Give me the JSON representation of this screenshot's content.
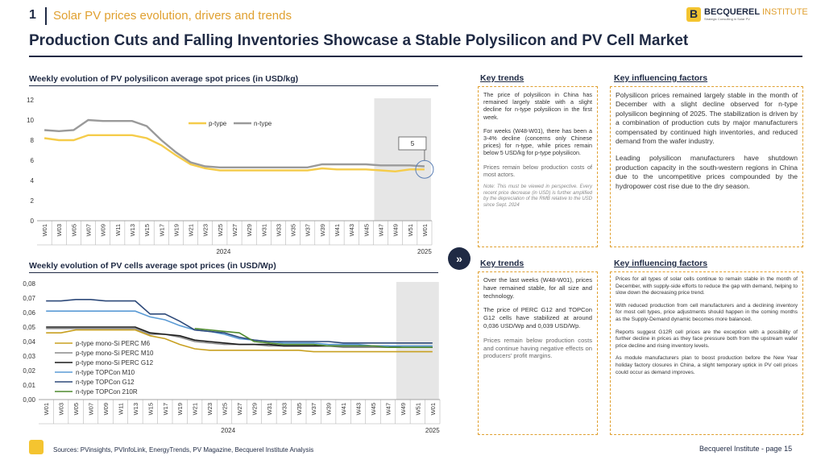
{
  "header": {
    "number": "1",
    "subtitle": "Solar PV prices evolution, drivers and trends",
    "logo_name": "BECQUEREL",
    "logo_name2": "INSTITUTE",
    "logo_tagline": "Strategic Consulting in Solar PV"
  },
  "title": "Production Cuts and Falling Inventories Showcase a Stable Polysilicon and PV Cell Market",
  "chart1_heading": "Weekly evolution of PV polysilicon average spot prices (in USD/kg)",
  "chart2_heading": "Weekly evolution of PV cells average spot prices (in USD/Wp)",
  "panel1": {
    "trends_title": "Key trends",
    "factors_title": "Key influencing factors",
    "trends": [
      "The price of polysilicon in China has remained largely stable with a slight decline for n-type polysilicon in the first week.",
      "For weeks (W48-W01), there has been a 3-4% decline (concerns only Chinese prices) for n-type, while prices remain below 5 USD/kg for p-type polysilicon.",
      "Prices remain below production costs of most actors."
    ],
    "note": "Note: This must be viewed in perspective. Every recent price decrease (in USD) is further amplified by the depreciation of the RMB relative to the USD since Sept. 2024",
    "factors": [
      "Polysilicon prices remained largely stable in the month of December with a slight decline observed for n-type polysilicon beginning of 2025. The stabilization is driven by a combination of production cuts by major manufacturers compensated by continued high inventories, and reduced demand from the wafer industry.",
      "Leading polysilicon manufacturers have shutdown production capacity in the south-western regions in China due to the uncompetitive prices compounded by the hydropower cost rise due to the dry season."
    ]
  },
  "panel2": {
    "trends_title": "Key trends",
    "factors_title": "Key influencing factors",
    "trends": [
      "Over the last weeks (W48-W01), prices have remained stable, for all size and technology.",
      "The price of PERC G12 and TOPCon G12 cells have stabilized at around 0,036 USD/Wp and 0,039 USD/Wp.",
      "Prices remain below production costs and continue having negative effects on producers' profit margins."
    ],
    "factors": [
      "Prices for all types of solar cells continue to remain stable in the month of December, with supply-side efforts to reduce the gap with demand, helping to slow down the decreasing price trend.",
      "With reduced production from cell manufacturers and a declining inventory for most cell types, price adjustments should happen in the coming months as the Supply-Demand dynamic becomes more balanced.",
      "Reports suggest G12R cell prices are the exception with a possibility of further decline in prices as they face pressure both from the upstream wafer price decline and rising inventory levels.",
      "As module manufacturers plan to boost production before the New Year holiday factory closures in China, a slight temporary uptick in PV cell prices could occur as demand improves."
    ]
  },
  "footer": {
    "sources": "Sources: PVinsights, PVInfoLink, EnergyTrends, PV Magazine, Becquerel Institute Analysis",
    "page": "Becquerel Institute - page 15"
  },
  "colors": {
    "navy": "#1f2a44",
    "gold": "#e0a030",
    "ptype": "#f5cc4a",
    "ntype": "#9a9a9a"
  },
  "chart_data": [
    {
      "type": "line",
      "title": "Weekly evolution of PV polysilicon average spot prices (in USD/kg)",
      "categories": [
        "W01",
        "W03",
        "W05",
        "W07",
        "W09",
        "W11",
        "W13",
        "W15",
        "W17",
        "W19",
        "W21",
        "W23",
        "W25",
        "W27",
        "W29",
        "W31",
        "W33",
        "W35",
        "W37",
        "W39",
        "W41",
        "W43",
        "W45",
        "W47",
        "W49",
        "W51",
        "W01"
      ],
      "xlabel_years": [
        "2024",
        "2025"
      ],
      "ylim": [
        0,
        12
      ],
      "yticks": [
        "0",
        "2",
        "4",
        "6",
        "8",
        "10",
        "12"
      ],
      "annotation": "5",
      "highlight_weeks": [
        "W47",
        "W01"
      ],
      "series": [
        {
          "name": "p-type",
          "color": "#f5cc4a",
          "values": [
            8.2,
            8.0,
            8.0,
            8.5,
            8.5,
            8.5,
            8.5,
            8.2,
            7.5,
            6.5,
            5.6,
            5.2,
            5.0,
            5.0,
            5.0,
            5.0,
            5.0,
            5.0,
            5.0,
            5.2,
            5.1,
            5.1,
            5.1,
            5.0,
            4.9,
            5.1,
            5.1
          ]
        },
        {
          "name": "n-type",
          "color": "#9a9a9a",
          "values": [
            9.0,
            8.9,
            9.0,
            10.0,
            9.9,
            9.9,
            9.9,
            9.4,
            8.0,
            6.8,
            5.8,
            5.4,
            5.3,
            5.3,
            5.3,
            5.3,
            5.3,
            5.3,
            5.3,
            5.6,
            5.6,
            5.6,
            5.6,
            5.5,
            5.5,
            5.5,
            5.4
          ]
        }
      ]
    },
    {
      "type": "line",
      "title": "Weekly evolution of PV cells average spot prices (in USD/Wp)",
      "categories": [
        "W01",
        "W03",
        "W05",
        "W07",
        "W09",
        "W11",
        "W13",
        "W15",
        "W17",
        "W19",
        "W21",
        "W23",
        "W25",
        "W27",
        "W29",
        "W31",
        "W33",
        "W35",
        "W37",
        "W39",
        "W41",
        "W43",
        "W45",
        "W47",
        "W49",
        "W51",
        "W01"
      ],
      "xlabel_years": [
        "2024",
        "2025"
      ],
      "ylim": [
        0,
        0.08
      ],
      "yticks": [
        "0,00",
        "0,01",
        "0,02",
        "0,03",
        "0,04",
        "0,05",
        "0,06",
        "0,07",
        "0,08"
      ],
      "highlight_weeks": [
        "W49",
        "W01"
      ],
      "series": [
        {
          "name": "p-type mono-Si PERC M6",
          "color": "#c8a020",
          "values": [
            0.046,
            0.046,
            0.048,
            0.048,
            0.048,
            0.048,
            0.048,
            0.044,
            0.042,
            0.038,
            0.035,
            0.034,
            0.034,
            0.034,
            0.034,
            0.034,
            0.034,
            0.034,
            0.033,
            0.033,
            0.033,
            0.033,
            0.033,
            0.033,
            0.033,
            0.033,
            0.033
          ]
        },
        {
          "name": "p-type mono-Si PERC M10",
          "color": "#8a8a8a",
          "values": [
            0.049,
            0.049,
            0.049,
            0.049,
            0.049,
            0.049,
            0.049,
            0.045,
            0.045,
            0.043,
            0.04,
            0.039,
            0.038,
            0.038,
            0.038,
            0.037,
            0.037,
            0.037,
            0.037,
            0.037,
            0.036,
            0.036,
            0.036,
            0.036,
            0.036,
            0.036,
            0.036
          ]
        },
        {
          "name": "p-type mono-Si PERC G12",
          "color": "#1a1a1a",
          "values": [
            0.05,
            0.05,
            0.05,
            0.05,
            0.05,
            0.05,
            0.05,
            0.046,
            0.045,
            0.044,
            0.041,
            0.04,
            0.039,
            0.038,
            0.038,
            0.038,
            0.037,
            0.037,
            0.037,
            0.037,
            0.037,
            0.037,
            0.037,
            0.037,
            0.036,
            0.036,
            0.036
          ]
        },
        {
          "name": "n-type TOPCon M10",
          "color": "#5b9bd5",
          "values": [
            0.061,
            0.061,
            0.061,
            0.061,
            0.061,
            0.061,
            0.061,
            0.057,
            0.055,
            0.051,
            0.048,
            0.047,
            0.045,
            0.042,
            0.041,
            0.04,
            0.039,
            0.039,
            0.039,
            0.038,
            0.038,
            0.038,
            0.037,
            0.037,
            0.037,
            0.037,
            0.037
          ]
        },
        {
          "name": "n-type TOPCon G12",
          "color": "#2e4a7a",
          "values": [
            0.068,
            0.068,
            0.069,
            0.069,
            0.068,
            0.068,
            0.068,
            0.059,
            0.059,
            0.054,
            0.048,
            0.047,
            0.046,
            0.043,
            0.041,
            0.04,
            0.04,
            0.04,
            0.04,
            0.04,
            0.039,
            0.039,
            0.039,
            0.039,
            0.039,
            0.039,
            0.039
          ]
        },
        {
          "name": "n-type TOPCon 210R",
          "color": "#4f8a2f",
          "values": [
            null,
            null,
            null,
            null,
            null,
            null,
            null,
            null,
            null,
            null,
            0.049,
            0.048,
            0.047,
            0.046,
            0.04,
            0.039,
            0.038,
            0.038,
            0.038,
            0.037,
            0.037,
            0.037,
            0.037,
            0.036,
            0.036,
            0.036,
            0.036
          ]
        }
      ]
    }
  ]
}
